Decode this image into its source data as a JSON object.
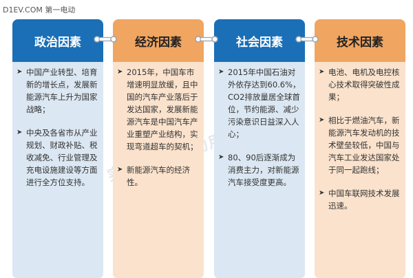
{
  "site_mark": "D1EV.COM 第一电动",
  "watermark": "实时分析 推动用户资产",
  "watermark_logo": "观",
  "colors": {
    "blue_header": "#1a6fb7",
    "blue_body": "#dbe7f2",
    "orange_header": "#f0a561",
    "orange_body": "#fae2cc"
  },
  "columns": [
    {
      "title": "政治因素",
      "items": [
        {
          "marker": "➤",
          "text": "中国产业转型、培育新的增长点，发展新能源汽车上升为国家战略；"
        },
        {
          "marker": "➤",
          "text": "中央及各省市从产业规划、财政补贴、税收减免、行业管理及充电设施建设等方面进行全方位支持。"
        }
      ]
    },
    {
      "title": "经济因素",
      "items": [
        {
          "marker": "➤",
          "text": "2015年，中国车市增速明显放缓，且中国的汽车产业落后于发达国家，发展新能源汽车是中国汽车产业重塑产业结构，实现弯道超车的契机；"
        },
        {
          "marker": "➤",
          "text": "新能源汽车的经济性。"
        }
      ]
    },
    {
      "title": "社会因素",
      "items": [
        {
          "marker": "➤",
          "text": "2015年中国石油对外依存达到60.6%，CO2排放量居全球首位，节约能源、减少污染意识日益深入人心；"
        },
        {
          "marker": "➤",
          "text": "80、90后逐渐成为消费主力，对新能源汽车接受度更高。"
        }
      ]
    },
    {
      "title": "技术因素",
      "items": [
        {
          "marker": "➤",
          "text": "电池、电机及电控核心技术取得突破性成果；"
        },
        {
          "marker": "➤",
          "text": "相比于燃油汽车，新能源汽车发动机的技术壁垒较低，中国与汽车工业发达国家处于同一起跑线；"
        },
        {
          "marker": "➤",
          "text": "中国车联网技术发展迅速。"
        }
      ]
    }
  ]
}
